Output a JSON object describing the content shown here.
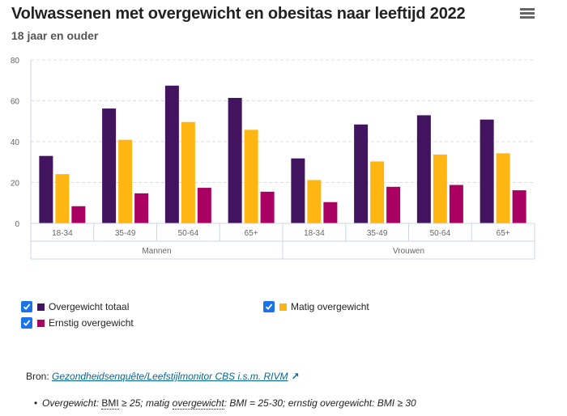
{
  "header": {
    "title": "Volwassenen met overgewicht en obesitas naar leeftijd 2022",
    "subtitle": "18 jaar en ouder",
    "menu_icon": "hamburger-menu-icon"
  },
  "chart_data": {
    "type": "bar",
    "title": "Volwassenen met overgewicht en obesitas naar leeftijd 2022",
    "subtitle": "18 jaar en ouder",
    "xlabel": "",
    "ylabel": "",
    "ylim": [
      0,
      80
    ],
    "yticks": [
      "0",
      "20",
      "40",
      "60",
      "80"
    ],
    "grid": true,
    "groups": [
      {
        "label": "Mannen",
        "categories": [
          "18-34",
          "35-49",
          "50-64",
          "65+"
        ]
      },
      {
        "label": "Vrouwen",
        "categories": [
          "18-34",
          "35-49",
          "50-64",
          "65+"
        ]
      }
    ],
    "categories": [
      "18-34",
      "35-49",
      "50-64",
      "65+",
      "18-34",
      "35-49",
      "50-64",
      "65+"
    ],
    "series": [
      {
        "name": "Overgewicht totaal",
        "color": "#42145f",
        "values": [
          33,
          56.2,
          67.4,
          61.4,
          31.8,
          48.4,
          52.9,
          50.8
        ]
      },
      {
        "name": "Matig overgewicht",
        "color": "#ffb612",
        "values": [
          24.1,
          40.9,
          49.6,
          45.8,
          21.2,
          30.3,
          33.7,
          34.3
        ]
      },
      {
        "name": "Ernstig overgewicht",
        "color": "#a90061",
        "values": [
          8.4,
          14.7,
          17.4,
          15.5,
          10.4,
          17.9,
          18.8,
          16.2
        ]
      }
    ],
    "legend_position": "bottom"
  },
  "legend": {
    "items": [
      {
        "label": "Overgewicht totaal",
        "checked": true,
        "color": "#42145f"
      },
      {
        "label": "Matig overgewicht",
        "checked": true,
        "color": "#ffb612"
      },
      {
        "label": "Ernstig overgewicht",
        "checked": true,
        "color": "#a90061"
      }
    ]
  },
  "source": {
    "prefix": "Bron: ",
    "link_text": "Gezondheidsenquête/Leefstijlmonitor CBS i.s.m. RIVM",
    "link_icon": "external-link-arrow-icon",
    "arrow_glyph": "↗"
  },
  "note": {
    "bullet": "•",
    "part1": "Overgewicht: ",
    "term1": "BMI",
    "part2": " ≥ 25; matig ",
    "term2": "overgewicht",
    "part3": ": BMI = 25-30; ernstig overgewicht: BMI ≥ 30"
  }
}
